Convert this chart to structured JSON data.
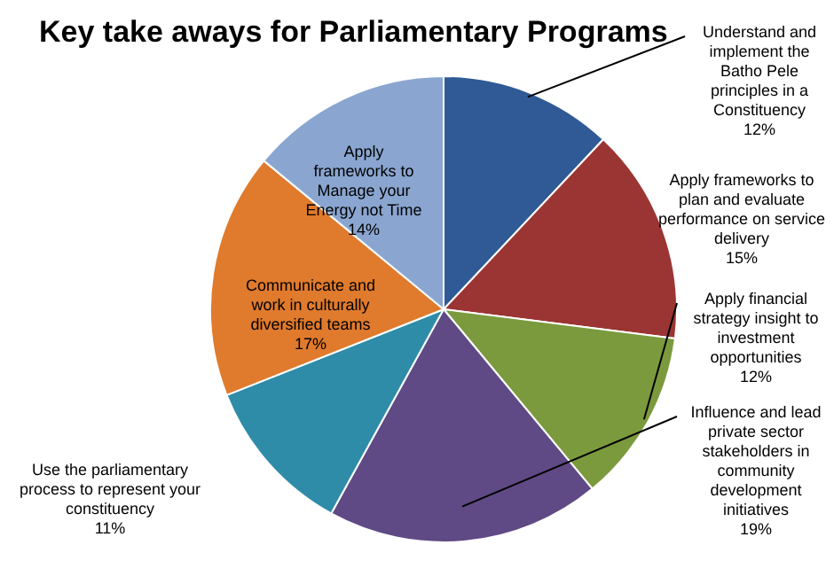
{
  "chart_data": {
    "type": "pie",
    "title": "Key take aways for Parliamentary Programs",
    "categories": [
      "Understand and implement the Batho Pele principles in a Constituency",
      "Apply frameworks to plan and evaluate performance on service delivery",
      "Apply financial strategy insight to investment opportunities",
      "Influence and lead private sector stakeholders in community development initiatives",
      "Use the parliamentary process to represent your constituency",
      "Communicate and work in culturally diversified teams",
      "Apply frameworks to Manage your Energy not Time"
    ],
    "values": [
      12,
      15,
      12,
      19,
      11,
      17,
      14
    ],
    "value_labels": [
      "12%",
      "15%",
      "12%",
      "19%",
      "11%",
      "17%",
      "14%"
    ],
    "colors": [
      "#2f5a96",
      "#9b3533",
      "#7b9a3d",
      "#5f4a85",
      "#2e8ca8",
      "#e07a2c",
      "#8aa6d0"
    ],
    "legend": false
  }
}
